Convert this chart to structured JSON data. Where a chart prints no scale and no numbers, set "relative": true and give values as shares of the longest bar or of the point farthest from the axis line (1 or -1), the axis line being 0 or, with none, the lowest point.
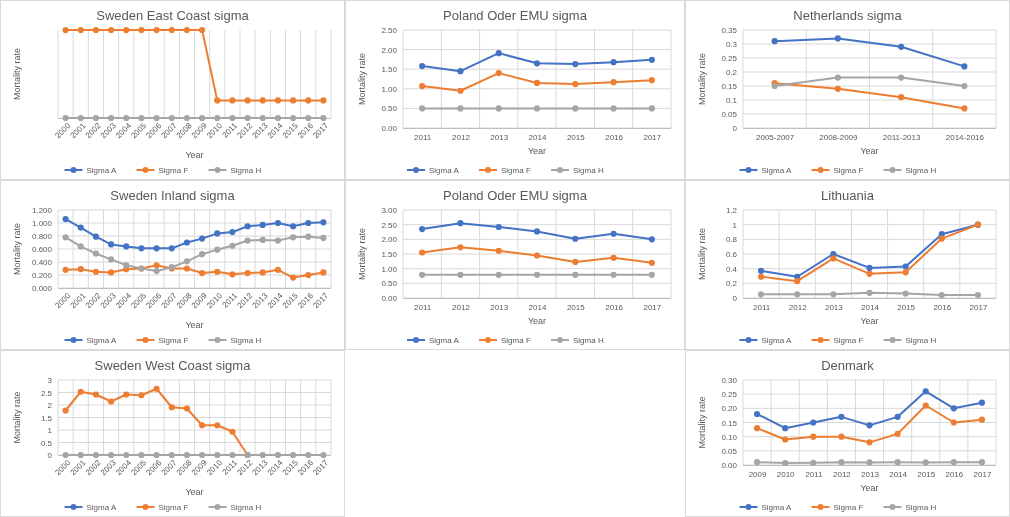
{
  "chart_data": [
    {
      "type": "line",
      "title": "Sweden East Coast sigma",
      "xlabel": "Year",
      "ylabel": "Mortality rate",
      "relative": true,
      "grid": "x",
      "legend": "bottom",
      "marker": "circle",
      "categories": [
        "2000",
        "2001",
        "2002",
        "2003",
        "2004",
        "2005",
        "2006",
        "2007",
        "2008",
        "2009",
        "2010",
        "2011",
        "2012",
        "2013",
        "2014",
        "2015",
        "2016",
        "2017"
      ],
      "series": [
        {
          "name": "Sigma A",
          "color": "#4472c4",
          "values": [
            null,
            null,
            null,
            null,
            null,
            null,
            null,
            null,
            null,
            null,
            null,
            null,
            null,
            null,
            null,
            null,
            null,
            null
          ]
        },
        {
          "name": "Sigma F",
          "color": "#ed7d31",
          "values": [
            1,
            1,
            1,
            1,
            1,
            1,
            1,
            1,
            1,
            1,
            0.2,
            0.2,
            0.2,
            0.2,
            0.2,
            0.2,
            0.2,
            0.2
          ]
        },
        {
          "name": "Sigma H",
          "color": "#a5a5a5",
          "values": [
            0,
            0,
            0,
            0,
            0,
            0,
            0,
            0,
            0,
            0,
            0,
            0,
            0,
            0,
            0,
            0,
            0,
            0
          ]
        }
      ]
    },
    {
      "type": "line",
      "title": "Poland Oder EMU sigma",
      "xlabel": "Year",
      "ylabel": "Mortality rate",
      "grid": true,
      "legend": "bottom",
      "marker": "circle",
      "categories": [
        "2011",
        "2012",
        "2013",
        "2014",
        "2015",
        "2016",
        "2017"
      ],
      "ylim": [
        0,
        2.5
      ],
      "yticks": [
        {
          "value": 0,
          "label": "0.00"
        },
        {
          "value": 0.5,
          "label": "0.50"
        },
        {
          "value": 1,
          "label": "1.00"
        },
        {
          "value": 1.5,
          "label": "1.50"
        },
        {
          "value": 2,
          "label": "2.00"
        },
        {
          "value": 2.5,
          "label": "2.50"
        }
      ],
      "series": [
        {
          "name": "Sigma A",
          "color": "#4472c4",
          "values": [
            1.58,
            1.45,
            1.91,
            1.65,
            1.63,
            1.68,
            1.74
          ]
        },
        {
          "name": "Sigma F",
          "color": "#ed7d31",
          "values": [
            1.07,
            0.95,
            1.4,
            1.15,
            1.12,
            1.17,
            1.22
          ]
        },
        {
          "name": "Sigma H",
          "color": "#a5a5a5",
          "values": [
            0.5,
            0.5,
            0.5,
            0.5,
            0.5,
            0.5,
            0.5
          ]
        }
      ]
    },
    {
      "type": "line",
      "title": "Netherlands sigma",
      "xlabel": "Year",
      "ylabel": "Mortality rate",
      "grid": true,
      "legend": "bottom",
      "marker": "circle",
      "categories": [
        "2005-2007",
        "2008-2009",
        "2011-2013",
        "2014-2016"
      ],
      "ylim": [
        0,
        0.35
      ],
      "yticks": [
        0,
        0.05,
        0.1,
        0.15,
        0.2,
        0.25,
        0.3,
        0.35
      ],
      "series": [
        {
          "name": "Sigma A",
          "color": "#4472c4",
          "values": [
            0.31,
            0.32,
            0.29,
            0.22
          ]
        },
        {
          "name": "Sigma F",
          "color": "#ed7d31",
          "values": [
            0.16,
            0.14,
            0.11,
            0.07
          ]
        },
        {
          "name": "Sigma H",
          "color": "#a5a5a5",
          "values": [
            0.15,
            0.18,
            0.18,
            0.15
          ]
        }
      ]
    },
    {
      "type": "line",
      "title": "Sweden Inland sigma",
      "xlabel": "Year",
      "ylabel": "Mortality rate",
      "grid": true,
      "legend": "bottom",
      "marker": "circle",
      "categories": [
        "2000",
        "2001",
        "2002",
        "2003",
        "2004",
        "2005",
        "2006",
        "2007",
        "2008",
        "2009",
        "2010",
        "2011",
        "2012",
        "2013",
        "2014",
        "2015",
        "2016",
        "2017"
      ],
      "ylim": [
        0,
        1.2
      ],
      "yticks": [
        {
          "value": 0,
          "label": "0.000"
        },
        {
          "value": 0.2,
          "label": "0.200"
        },
        {
          "value": 0.4,
          "label": "0.400"
        },
        {
          "value": 0.6,
          "label": "0.600"
        },
        {
          "value": 0.8,
          "label": "0.800"
        },
        {
          "value": 1,
          "label": "1.000"
        },
        {
          "value": 1.2,
          "label": "1.200"
        }
      ],
      "series": [
        {
          "name": "Sigma A",
          "color": "#4472c4",
          "values": [
            1.06,
            0.93,
            0.79,
            0.67,
            0.64,
            0.61,
            0.61,
            0.61,
            0.7,
            0.76,
            0.84,
            0.86,
            0.95,
            0.97,
            1,
            0.95,
            1,
            1.01
          ]
        },
        {
          "name": "Sigma F",
          "color": "#ed7d31",
          "values": [
            0.28,
            0.29,
            0.25,
            0.24,
            0.29,
            0.3,
            0.35,
            0.3,
            0.3,
            0.23,
            0.25,
            0.21,
            0.23,
            0.24,
            0.28,
            0.16,
            0.2,
            0.24
          ]
        },
        {
          "name": "Sigma H",
          "color": "#a5a5a5",
          "values": [
            0.78,
            0.64,
            0.53,
            0.44,
            0.35,
            0.3,
            0.26,
            0.32,
            0.41,
            0.52,
            0.59,
            0.65,
            0.73,
            0.74,
            0.73,
            0.78,
            0.79,
            0.77
          ]
        }
      ]
    },
    {
      "type": "line",
      "title": "Poland Oder EMU sigma",
      "xlabel": "Year",
      "ylabel": "Mortality rate",
      "grid": true,
      "legend": "bottom",
      "marker": "circle",
      "categories": [
        "2011",
        "2012",
        "2013",
        "2014",
        "2015",
        "2016",
        "2017"
      ],
      "ylim": [
        0,
        3
      ],
      "yticks": [
        {
          "value": 0,
          "label": "0.00"
        },
        {
          "value": 0.5,
          "label": "0.50"
        },
        {
          "value": 1,
          "label": "1.00"
        },
        {
          "value": 1.5,
          "label": "1.50"
        },
        {
          "value": 2,
          "label": "2.00"
        },
        {
          "value": 2.5,
          "label": "2.50"
        },
        {
          "value": 3,
          "label": "3.00"
        }
      ],
      "series": [
        {
          "name": "Sigma A",
          "color": "#4472c4",
          "values": [
            2.35,
            2.55,
            2.42,
            2.27,
            2.02,
            2.19,
            2.0
          ]
        },
        {
          "name": "Sigma F",
          "color": "#ed7d31",
          "values": [
            1.55,
            1.73,
            1.61,
            1.45,
            1.23,
            1.37,
            1.2
          ]
        },
        {
          "name": "Sigma H",
          "color": "#a5a5a5",
          "values": [
            0.79,
            0.79,
            0.79,
            0.79,
            0.79,
            0.79,
            0.79
          ]
        }
      ]
    },
    {
      "type": "line",
      "title": "Lithuania",
      "xlabel": "Year",
      "ylabel": "Mortality rate",
      "grid": true,
      "legend": "bottom",
      "marker": "circle",
      "categories": [
        "2011",
        "2012",
        "2013",
        "2014",
        "2015",
        "2016",
        "2017"
      ],
      "ylim": [
        0,
        1.2
      ],
      "yticks": [
        0,
        0.2,
        0.4,
        0.6,
        0.8,
        1,
        1.2
      ],
      "series": [
        {
          "name": "Sigma A",
          "color": "#4472c4",
          "values": [
            0.37,
            0.29,
            0.6,
            0.41,
            0.43,
            0.87,
            1
          ]
        },
        {
          "name": "Sigma F",
          "color": "#ed7d31",
          "values": [
            0.29,
            0.23,
            0.54,
            0.33,
            0.35,
            0.81,
            1
          ]
        },
        {
          "name": "Sigma H",
          "color": "#a5a5a5",
          "values": [
            0.05,
            0.05,
            0.05,
            0.07,
            0.06,
            0.04,
            0.04
          ]
        }
      ]
    },
    {
      "type": "line",
      "title": "Sweden West Coast sigma",
      "xlabel": "Year",
      "ylabel": "Mortality rate",
      "grid": true,
      "legend": "bottom",
      "marker": "circle",
      "categories": [
        "2000",
        "2001",
        "2002",
        "2003",
        "2004",
        "2005",
        "2006",
        "2007",
        "2008",
        "2009",
        "2010",
        "2011",
        "2012",
        "2013",
        "2014",
        "2015",
        "2016",
        "2017"
      ],
      "ylim": [
        0,
        3
      ],
      "yticks": [
        0,
        0.5,
        1,
        1.5,
        2,
        2.5,
        3
      ],
      "series": [
        {
          "name": "Sigma A",
          "color": "#4472c4",
          "values": [
            null,
            null,
            null,
            null,
            null,
            null,
            null,
            null,
            null,
            null,
            null,
            null,
            null,
            null,
            null,
            null,
            null,
            null
          ]
        },
        {
          "name": "Sigma F",
          "color": "#ed7d31",
          "values": [
            1.78,
            2.53,
            2.42,
            2.14,
            2.42,
            2.39,
            2.65,
            1.91,
            1.86,
            1.19,
            1.19,
            0.93,
            0,
            null,
            null,
            null,
            null,
            null
          ]
        },
        {
          "name": "Sigma H",
          "color": "#a5a5a5",
          "values": [
            0,
            0,
            0,
            0,
            0,
            0,
            0,
            0,
            0,
            0,
            0,
            0,
            0,
            0,
            0,
            0,
            0,
            0
          ]
        }
      ]
    },
    {
      "type": "line",
      "title": "Denmark",
      "xlabel": "Year",
      "ylabel": "Mortality rate",
      "grid": true,
      "legend": "bottom",
      "marker": "circle",
      "categories": [
        "2009",
        "2010",
        "2011",
        "2012",
        "2013",
        "2014",
        "2015",
        "2016",
        "2017"
      ],
      "ylim": [
        0,
        0.3
      ],
      "yticks": [
        {
          "value": 0,
          "label": "0.00"
        },
        {
          "value": 0.05,
          "label": "0.05"
        },
        {
          "value": 0.1,
          "label": "0.10"
        },
        {
          "value": 0.15,
          "label": "0.15"
        },
        {
          "value": 0.2,
          "label": "0.20"
        },
        {
          "value": 0.25,
          "label": "0.25"
        },
        {
          "value": 0.3,
          "label": "0.30"
        }
      ],
      "series": [
        {
          "name": "Sigma A",
          "color": "#4472c4",
          "values": [
            0.18,
            0.13,
            0.15,
            0.17,
            0.14,
            0.17,
            0.26,
            0.2,
            0.22
          ]
        },
        {
          "name": "Sigma F",
          "color": "#ed7d31",
          "values": [
            0.13,
            0.09,
            0.1,
            0.1,
            0.08,
            0.11,
            0.21,
            0.15,
            0.16
          ]
        },
        {
          "name": "Sigma H",
          "color": "#a5a5a5",
          "values": [
            0.01,
            0.007,
            0.008,
            0.01,
            0.009,
            0.01,
            0.009,
            0.01,
            0.01
          ]
        }
      ]
    }
  ]
}
